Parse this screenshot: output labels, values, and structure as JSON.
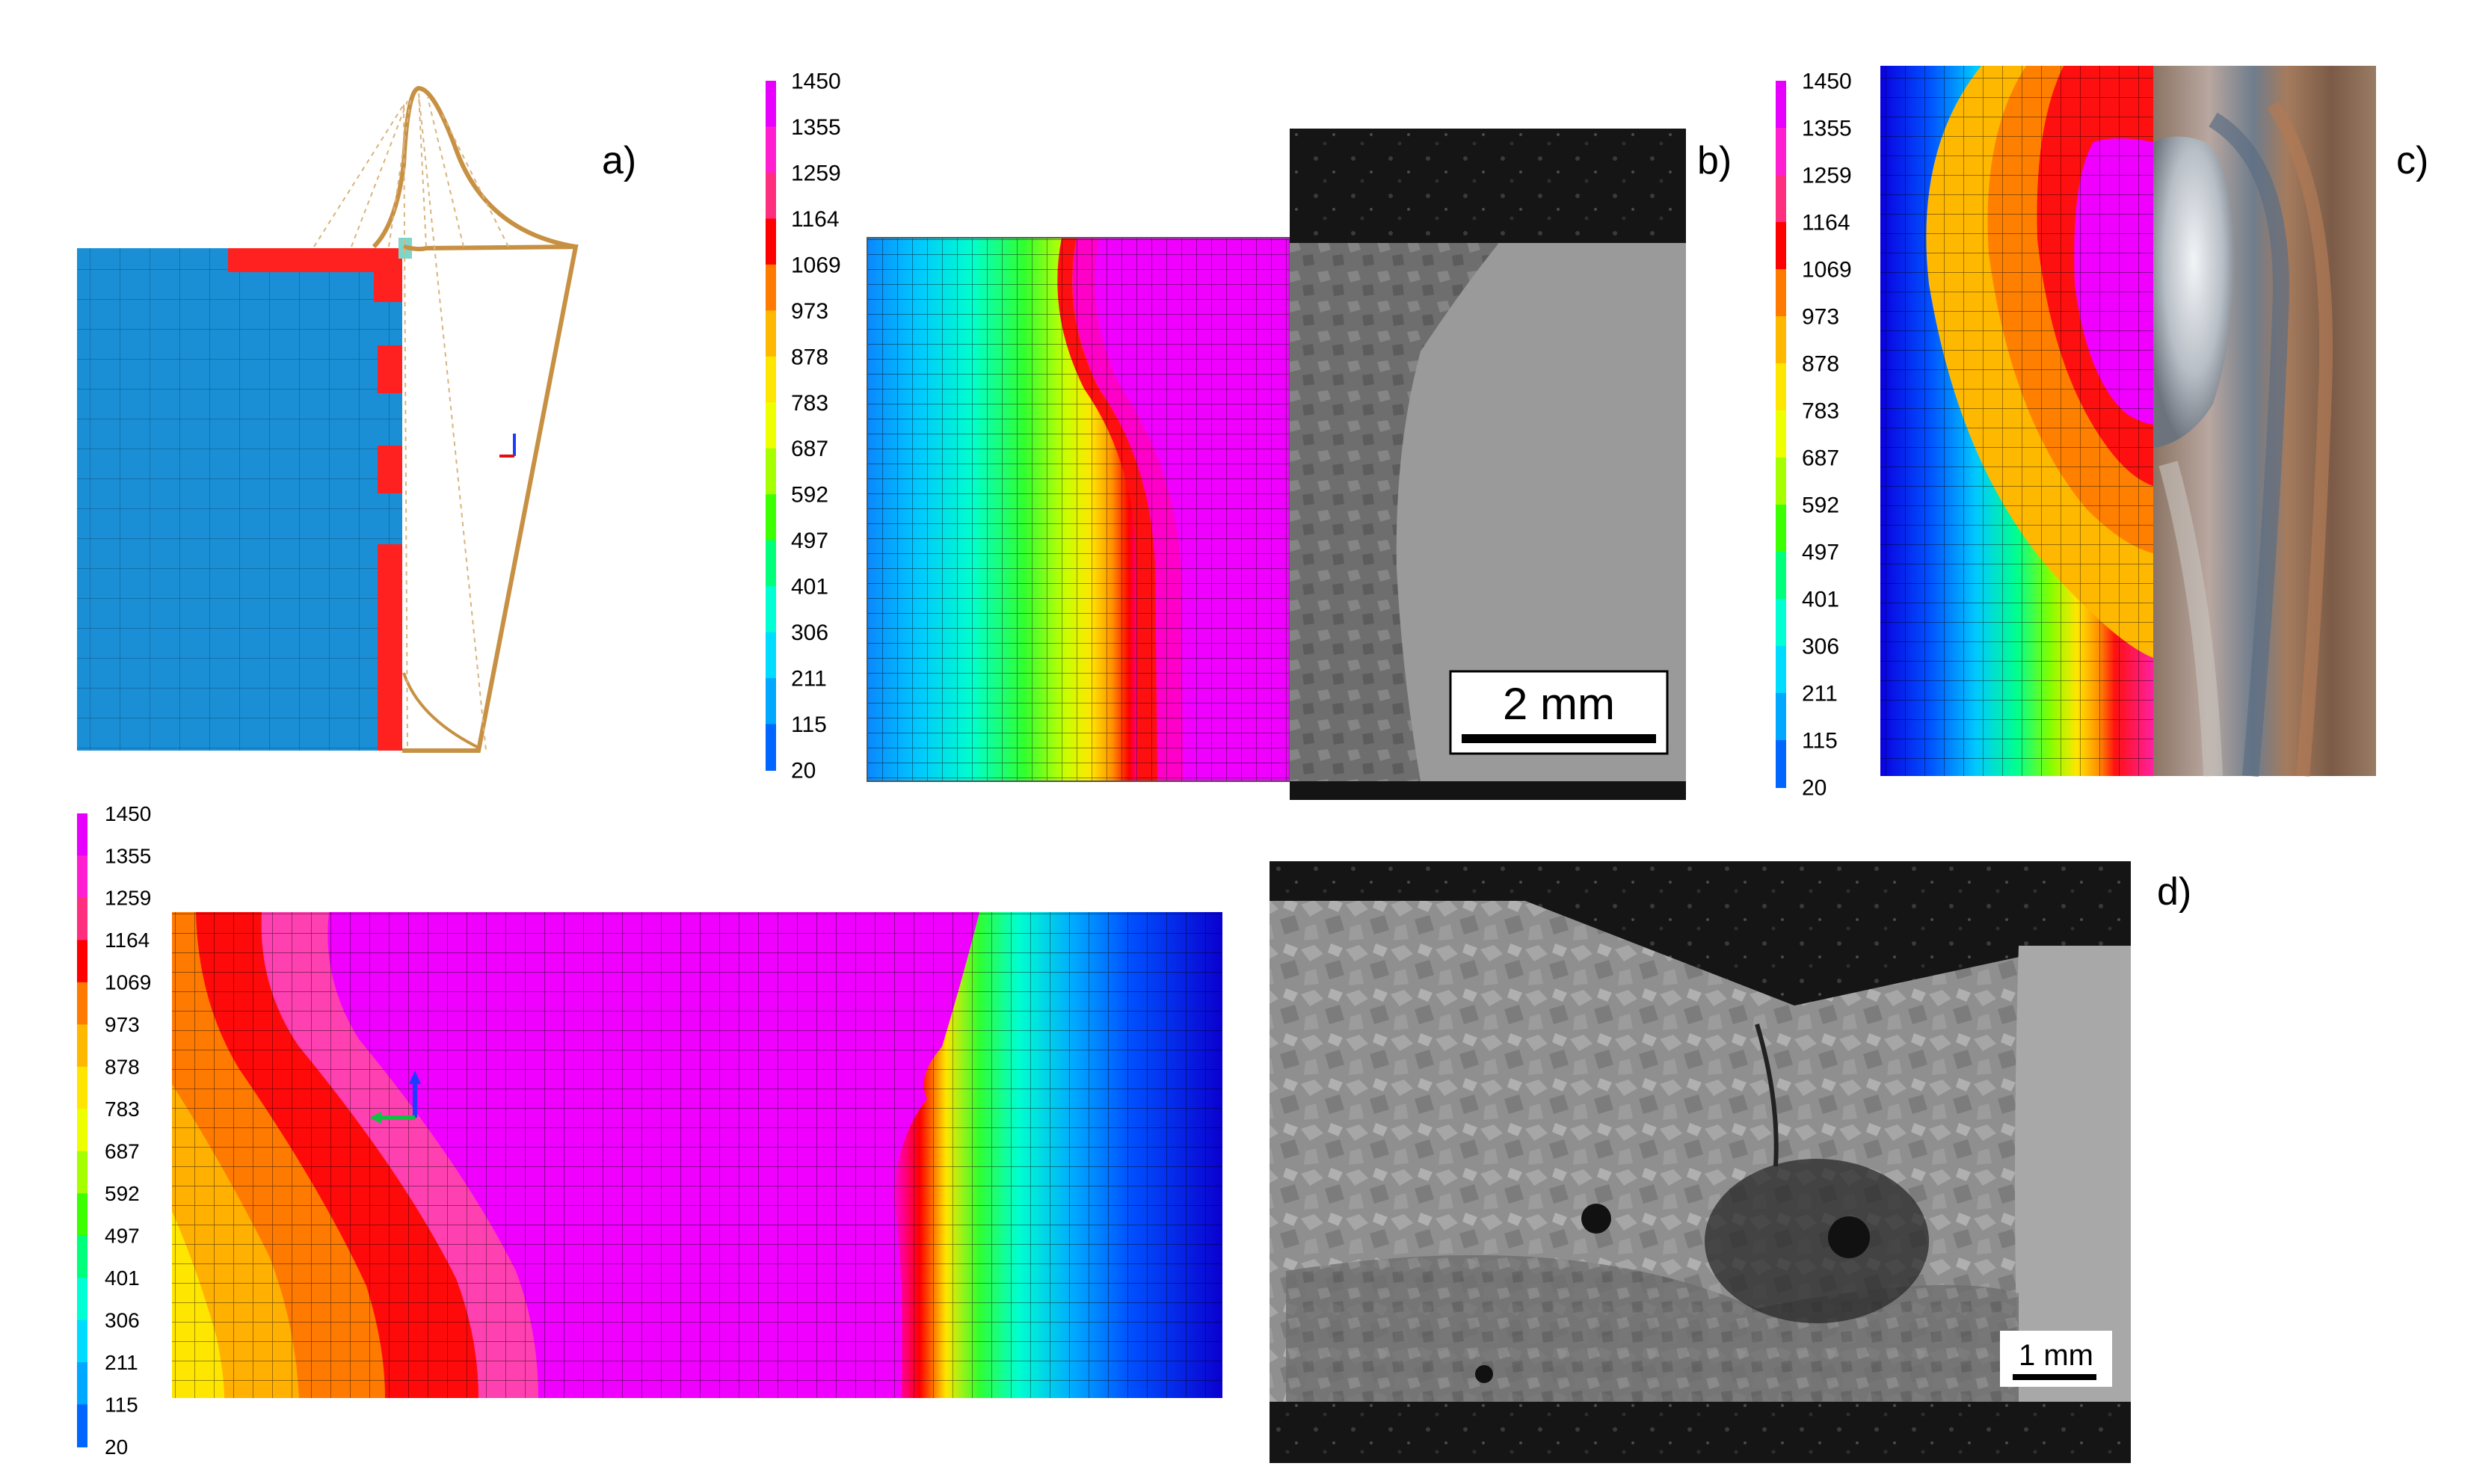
{
  "colorbar": {
    "levels": [
      "1450",
      "1355",
      "1259",
      "1164",
      "1069",
      "973",
      "878",
      "783",
      "687",
      "592",
      "497",
      "401",
      "306",
      "211",
      "115",
      "20"
    ],
    "colors": [
      "#e800ff",
      "#ff1fd0",
      "#ff2f80",
      "#ff0000",
      "#ff7a00",
      "#ffb800",
      "#ffe600",
      "#eeff00",
      "#a6ff00",
      "#3cff00",
      "#00ff7a",
      "#00ffd2",
      "#00dcff",
      "#00a8ff",
      "#0066ff",
      "#1a00e6"
    ]
  },
  "panels": {
    "a": {
      "label": "a)"
    },
    "b": {
      "label": "b)",
      "scale_bar": "2 mm"
    },
    "c": {
      "label": "c)"
    },
    "d": {
      "label": "d)",
      "scale_bar": "1 mm"
    }
  }
}
